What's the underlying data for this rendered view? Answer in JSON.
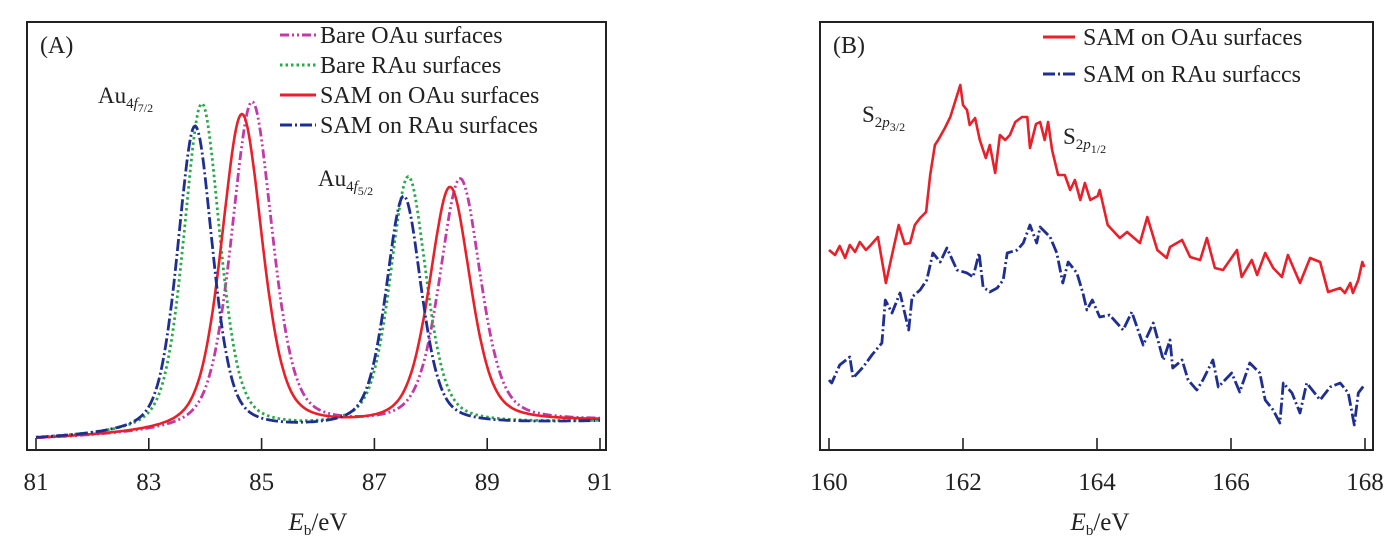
{
  "chart_data": [
    {
      "type": "line",
      "panel_label": "(A)",
      "xlabel": {
        "main": "E",
        "sub": "b",
        "unit": "/eV"
      },
      "ylabel": "",
      "xlim": [
        81,
        91
      ],
      "ylim": [
        0,
        428
      ],
      "xticks": [
        81,
        83,
        85,
        87,
        89,
        91
      ],
      "grid": false,
      "legend_position": "top-right",
      "baseline": [
        10,
        28
      ],
      "annotations": [
        {
          "main": "Au",
          "sub": "4",
          "sub_italic": "f",
          "subsub": "7/2",
          "near_x": 83.9
        },
        {
          "main": "Au",
          "sub": "4",
          "sub_italic": "f",
          "subsub": "5/2",
          "near_x": 87.5
        }
      ],
      "series": [
        {
          "name": "Bare OAu surfaces",
          "color": "#c03aa8",
          "style": "dash-dot-dot",
          "fwhm": 0.86,
          "peaks": [
            {
              "center": 84.83,
              "height": 330
            },
            {
              "center": 88.52,
              "height": 246
            }
          ]
        },
        {
          "name": "Bare RAu surfaces",
          "color": "#2aa84a",
          "style": "dotted",
          "fwhm": 0.76,
          "peaks": [
            {
              "center": 83.94,
              "height": 330
            },
            {
              "center": 87.6,
              "height": 250
            }
          ]
        },
        {
          "name": "SAM on OAu surfaces",
          "color": "#e8202a",
          "style": "solid",
          "fwhm": 0.86,
          "peaks": [
            {
              "center": 84.65,
              "height": 318
            },
            {
              "center": 88.34,
              "height": 238
            }
          ]
        },
        {
          "name": "SAM on RAu surfaces",
          "color": "#1f2f8f",
          "style": "dash-dot",
          "fwhm": 0.74,
          "peaks": [
            {
              "center": 83.82,
              "height": 308
            },
            {
              "center": 87.52,
              "height": 231
            }
          ]
        }
      ]
    },
    {
      "type": "line",
      "panel_label": "(B)",
      "xlabel": {
        "main": "E",
        "sub": "b",
        "unit": "/eV"
      },
      "ylabel": "",
      "xlim": [
        160,
        168
      ],
      "ylim": [
        0,
        428
      ],
      "xticks": [
        160,
        162,
        164,
        166,
        168
      ],
      "grid": false,
      "legend_position": "top-right",
      "annotations": [
        {
          "main": "S",
          "sub": "2",
          "sub_italic": "p",
          "subsub": "3/2",
          "near_x": 162.0
        },
        {
          "main": "S",
          "sub": "2",
          "sub_italic": "p",
          "subsub": "1/2",
          "near_x": 163.3
        }
      ],
      "series": [
        {
          "name": "SAM on OAu surfaces",
          "color": "#e8202a",
          "style": "solid",
          "x": [
            160.0,
            160.09,
            160.16,
            160.24,
            160.31,
            160.39,
            160.46,
            160.55,
            160.61,
            160.73,
            160.85,
            160.94,
            161.04,
            161.13,
            161.21,
            161.28,
            161.36,
            161.45,
            161.51,
            161.58,
            161.63,
            161.73,
            161.81,
            161.88,
            161.96,
            162.0,
            162.06,
            162.1,
            162.18,
            162.25,
            162.34,
            162.4,
            162.48,
            162.55,
            162.63,
            162.7,
            162.78,
            162.88,
            162.96,
            163.0,
            163.09,
            163.15,
            163.22,
            163.27,
            163.33,
            163.42,
            163.52,
            163.6,
            163.67,
            163.75,
            163.82,
            163.9,
            164.01,
            164.04,
            164.16,
            164.34,
            164.45,
            164.64,
            164.75,
            164.9,
            165.04,
            165.09,
            165.27,
            165.39,
            165.54,
            165.64,
            165.76,
            165.88,
            166.09,
            166.16,
            166.31,
            166.39,
            166.51,
            166.63,
            166.76,
            166.85,
            167.03,
            167.18,
            167.33,
            167.45,
            167.63,
            167.7,
            167.78,
            167.82,
            167.9,
            167.96,
            167.99
          ],
          "y": [
            200,
            195,
            204,
            192,
            205,
            198,
            208,
            200,
            204,
            213,
            167,
            195,
            225,
            206,
            207,
            225,
            232,
            238,
            275,
            305,
            310,
            322,
            333,
            348,
            365,
            345,
            340,
            325,
            332,
            310,
            292,
            305,
            277,
            315,
            310,
            315,
            328,
            333,
            333,
            302,
            326,
            328,
            310,
            328,
            300,
            275,
            275,
            260,
            270,
            250,
            267,
            250,
            254,
            260,
            225,
            212,
            218,
            207,
            233,
            200,
            192,
            203,
            210,
            193,
            190,
            212,
            182,
            180,
            200,
            173,
            190,
            175,
            197,
            182,
            173,
            195,
            167,
            192,
            188,
            158,
            162,
            157,
            167,
            157,
            170,
            188,
            183
          ]
        },
        {
          "name": "SAM on RAu surfaccs",
          "color": "#1f2f8f",
          "style": "dash-dot",
          "x": [
            160.0,
            160.04,
            160.16,
            160.31,
            160.36,
            160.51,
            160.64,
            160.79,
            160.84,
            160.94,
            161.06,
            161.19,
            161.24,
            161.36,
            161.46,
            161.55,
            161.66,
            161.76,
            161.91,
            162.06,
            162.15,
            162.24,
            162.3,
            162.4,
            162.51,
            162.6,
            162.66,
            162.81,
            162.9,
            163.0,
            163.1,
            163.15,
            163.3,
            163.4,
            163.49,
            163.57,
            163.7,
            163.79,
            163.85,
            163.93,
            164.04,
            164.19,
            164.39,
            164.52,
            164.69,
            164.84,
            164.99,
            165.09,
            165.13,
            165.27,
            165.36,
            165.49,
            165.58,
            165.73,
            165.81,
            166.01,
            166.13,
            166.28,
            166.43,
            166.51,
            166.63,
            166.73,
            166.78,
            166.91,
            167.03,
            167.13,
            167.33,
            167.48,
            167.63,
            167.75,
            167.84,
            167.9,
            167.99
          ],
          "y": [
            70,
            67,
            85,
            93,
            72,
            83,
            95,
            107,
            150,
            137,
            157,
            120,
            153,
            160,
            170,
            197,
            188,
            202,
            180,
            177,
            173,
            197,
            163,
            158,
            162,
            170,
            197,
            200,
            207,
            225,
            207,
            223,
            213,
            197,
            167,
            188,
            177,
            157,
            140,
            150,
            133,
            135,
            120,
            138,
            105,
            127,
            90,
            110,
            82,
            90,
            70,
            60,
            70,
            90,
            63,
            77,
            58,
            87,
            77,
            50,
            40,
            27,
            67,
            57,
            37,
            67,
            50,
            63,
            67,
            57,
            25,
            57,
            65
          ]
        }
      ]
    }
  ]
}
